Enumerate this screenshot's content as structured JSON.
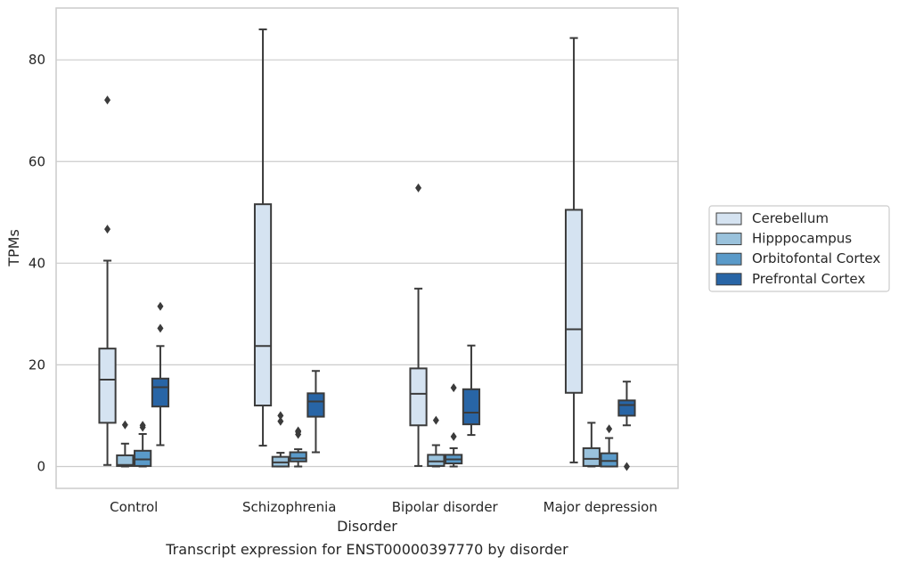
{
  "chart_data": {
    "type": "box",
    "xlabel": "Disorder",
    "ylabel": "TPMs",
    "caption": "Transcript expression for ENST00000397770 by disorder",
    "ylim": [
      -4.3,
      90.2
    ],
    "yticks": [
      0,
      20,
      40,
      60,
      80
    ],
    "grid": "horizontal",
    "legend_position": "right",
    "categories": [
      "Control",
      "Schizophrenia",
      "Bipolar disorder",
      "Major depression"
    ],
    "series": [
      {
        "name": "Cerebellum",
        "color": "#d5e3f1",
        "boxes": [
          {
            "whisker_low": 0.3,
            "q1": 8.6,
            "median": 17.1,
            "q3": 23.2,
            "whisker_high": 40.5,
            "outliers": [
              72.1,
              46.7
            ]
          },
          {
            "whisker_low": 4.1,
            "q1": 12.0,
            "median": 23.7,
            "q3": 51.6,
            "whisker_high": 86.0,
            "outliers": []
          },
          {
            "whisker_low": 0.1,
            "q1": 8.1,
            "median": 14.3,
            "q3": 19.3,
            "whisker_high": 35.0,
            "outliers": [
              54.8
            ]
          },
          {
            "whisker_low": 0.8,
            "q1": 14.5,
            "median": 27.0,
            "q3": 50.5,
            "whisker_high": 84.3,
            "outliers": []
          }
        ]
      },
      {
        "name": "Hipppocampus",
        "color": "#9ac2dc",
        "boxes": [
          {
            "whisker_low": 0.0,
            "q1": 0.1,
            "median": 0.3,
            "q3": 2.2,
            "whisker_high": 4.5,
            "outliers": [
              8.2
            ]
          },
          {
            "whisker_low": 0.0,
            "q1": 0.0,
            "median": 0.8,
            "q3": 1.9,
            "whisker_high": 2.7,
            "outliers": [
              10.0,
              8.9
            ]
          },
          {
            "whisker_low": 0.0,
            "q1": 0.1,
            "median": 1.0,
            "q3": 2.3,
            "whisker_high": 4.2,
            "outliers": [
              9.1
            ]
          },
          {
            "whisker_low": 0.0,
            "q1": 0.1,
            "median": 1.5,
            "q3": 3.6,
            "whisker_high": 8.6,
            "outliers": []
          }
        ]
      },
      {
        "name": "Orbitofontal Cortex",
        "color": "#5a9ac9",
        "boxes": [
          {
            "whisker_low": 0.0,
            "q1": 0.1,
            "median": 1.4,
            "q3": 3.1,
            "whisker_high": 6.4,
            "outliers": [
              8.1,
              7.7
            ]
          },
          {
            "whisker_low": 0.0,
            "q1": 1.0,
            "median": 1.6,
            "q3": 2.8,
            "whisker_high": 3.4,
            "outliers": [
              7.0,
              6.8,
              6.3
            ]
          },
          {
            "whisker_low": 0.0,
            "q1": 0.6,
            "median": 1.4,
            "q3": 2.3,
            "whisker_high": 3.6,
            "outliers": [
              15.5,
              5.9
            ]
          },
          {
            "whisker_low": 0.0,
            "q1": 0.0,
            "median": 1.1,
            "q3": 2.6,
            "whisker_high": 5.6,
            "outliers": [
              7.4
            ]
          }
        ]
      },
      {
        "name": "Prefrontal Cortex",
        "color": "#2865a6",
        "boxes": [
          {
            "whisker_low": 4.2,
            "q1": 11.8,
            "median": 15.6,
            "q3": 17.3,
            "whisker_high": 23.7,
            "outliers": [
              31.5,
              27.2
            ]
          },
          {
            "whisker_low": 2.8,
            "q1": 9.8,
            "median": 12.8,
            "q3": 14.4,
            "whisker_high": 18.8,
            "outliers": []
          },
          {
            "whisker_low": 6.2,
            "q1": 8.3,
            "median": 10.6,
            "q3": 15.2,
            "whisker_high": 23.8,
            "outliers": []
          },
          {
            "whisker_low": 8.1,
            "q1": 10.0,
            "median": 12.1,
            "q3": 13.0,
            "whisker_high": 16.7,
            "outliers": [
              0.0
            ]
          }
        ]
      }
    ]
  }
}
